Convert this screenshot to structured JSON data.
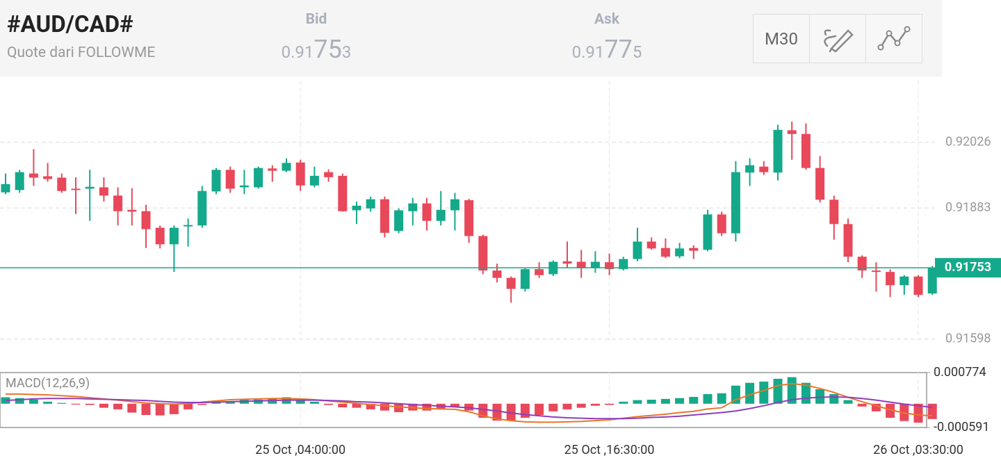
{
  "header": {
    "symbol": "#AUD/CAD#",
    "source": "Quote dari FOLLOWME",
    "bid": {
      "label": "Bid",
      "prefix": "0.91",
      "big": "75",
      "suffix": "3"
    },
    "ask": {
      "label": "Ask",
      "prefix": "0.91",
      "big": "77",
      "suffix": "5"
    },
    "timeframe": "M30"
  },
  "chart_data": [
    {
      "type": "candlestick",
      "categories": [
        null,
        null,
        null,
        null,
        null,
        null,
        null,
        null,
        null,
        null,
        null,
        null,
        null,
        null,
        null,
        null,
        null,
        null,
        null,
        null,
        null,
        "25 Oct ,04:00:00",
        null,
        null,
        null,
        null,
        null,
        null,
        null,
        null,
        null,
        null,
        null,
        null,
        null,
        null,
        null,
        null,
        null,
        null,
        null,
        null,
        null,
        "25 Oct ,16:30:00",
        null,
        null,
        null,
        null,
        null,
        null,
        null,
        null,
        null,
        null,
        null,
        null,
        null,
        null,
        null,
        null,
        null,
        null,
        null,
        null,
        null,
        "26 Oct ,03:30:00",
        null
      ],
      "open": [
        0.91917,
        0.91922,
        0.91958,
        0.91952,
        0.91949,
        0.91925,
        0.91925,
        0.91928,
        0.9191,
        0.91879,
        0.91876,
        0.9184,
        0.91804,
        0.91843,
        0.91845,
        0.91919,
        0.91966,
        0.91928,
        0.91928,
        0.91969,
        0.91964,
        0.91982,
        0.91932,
        0.91961,
        0.91953,
        0.91878,
        0.91882,
        0.91902,
        0.91833,
        0.91876,
        0.91893,
        0.91855,
        0.91878,
        0.919,
        0.91822,
        0.91747,
        0.91731,
        0.91707,
        0.9175,
        0.91739,
        0.91767,
        0.91766,
        0.91754,
        0.91765,
        0.9175,
        0.91772,
        0.9181,
        0.91796,
        0.91778,
        0.91796,
        0.91792,
        0.91869,
        0.91828,
        0.9196,
        0.91973,
        0.9196,
        0.92052,
        0.92044,
        0.9197,
        0.91901,
        0.91848,
        0.91777,
        0.91747,
        0.91744,
        0.91715,
        0.91734,
        0.91697
      ],
      "high": [
        0.91958,
        0.91966,
        0.92011,
        0.91981,
        0.91958,
        0.9195,
        0.91966,
        0.9195,
        0.91928,
        0.91926,
        0.9189,
        0.91845,
        0.91845,
        0.9186,
        0.91931,
        0.9197,
        0.91973,
        0.91966,
        0.91973,
        0.91976,
        0.91991,
        0.91988,
        0.91973,
        0.91967,
        0.91958,
        0.91897,
        0.91908,
        0.91908,
        0.91882,
        0.91905,
        0.91905,
        0.9192,
        0.91916,
        0.91903,
        0.91825,
        0.91762,
        0.91734,
        0.91754,
        0.91765,
        0.91769,
        0.9181,
        0.91792,
        0.91789,
        0.91784,
        0.91777,
        0.9184,
        0.91819,
        0.91817,
        0.91807,
        0.91802,
        0.91879,
        0.91875,
        0.91985,
        0.91991,
        0.91985,
        0.92064,
        0.92071,
        0.92067,
        0.91996,
        0.9191,
        0.9186,
        0.9178,
        0.91765,
        0.9175,
        0.91737,
        0.91737,
        0.91757
      ],
      "low": [
        0.91913,
        0.91916,
        0.91931,
        0.9194,
        0.91916,
        0.9187,
        0.91855,
        0.91897,
        0.91845,
        0.91845,
        0.91796,
        0.91795,
        0.91744,
        0.91799,
        0.9184,
        0.91913,
        0.91916,
        0.91913,
        0.91925,
        0.9194,
        0.91961,
        0.9192,
        0.91928,
        0.9194,
        0.91875,
        0.91848,
        0.91875,
        0.91819,
        0.91828,
        0.91845,
        0.91834,
        0.91845,
        0.91834,
        0.91807,
        0.91739,
        0.91721,
        0.91677,
        0.91701,
        0.91731,
        0.91735,
        0.91754,
        0.91731,
        0.91742,
        0.91737,
        0.91747,
        0.91767,
        0.91792,
        0.91774,
        0.91774,
        0.91772,
        0.91789,
        0.91822,
        0.9181,
        0.91931,
        0.91955,
        0.91943,
        0.91988,
        0.91966,
        0.91895,
        0.91814,
        0.91765,
        0.91731,
        0.91701,
        0.91689,
        0.91694,
        0.91689,
        0.91694
      ],
      "close": [
        0.91935,
        0.91961,
        0.91949,
        0.91946,
        0.9192,
        0.91922,
        0.91929,
        0.9191,
        0.91876,
        0.91875,
        0.91837,
        0.91804,
        0.9184,
        0.91846,
        0.9192,
        0.91966,
        0.91925,
        0.91932,
        0.9197,
        0.91964,
        0.91981,
        0.91932,
        0.91953,
        0.9195,
        0.91876,
        0.91888,
        0.91902,
        0.91829,
        0.91878,
        0.91893,
        0.91855,
        0.91879,
        0.91902,
        0.91822,
        0.91747,
        0.91731,
        0.91707,
        0.9175,
        0.91737,
        0.91766,
        0.91762,
        0.91752,
        0.91766,
        0.9175,
        0.91772,
        0.9181,
        0.91795,
        0.91777,
        0.91795,
        0.9179,
        0.91869,
        0.91828,
        0.91961,
        0.91976,
        0.91961,
        0.92053,
        0.92044,
        0.9197,
        0.91901,
        0.91848,
        0.91777,
        0.91747,
        0.91744,
        0.91715,
        0.91734,
        0.91694,
        0.91754
      ],
      "up_color": "#14a98a",
      "down_color": "#e8485a",
      "last_price": 0.91753,
      "ylim": [
        0.9159,
        0.9216
      ],
      "yticks": [
        0.91598,
        0.91883,
        0.92026
      ],
      "grid": true
    },
    {
      "type": "macd",
      "label": "MACD(12,26,9)",
      "histogram": {
        "up_color": "#14a98a",
        "down_color": "#e8485a",
        "values": [
          0.00016,
          0.00014,
          0.0001,
          5e-05,
          2e-05,
          -2e-05,
          -3e-05,
          -0.0001,
          -0.00014,
          -0.00022,
          -0.00028,
          -0.00029,
          -0.00026,
          -0.00014,
          -3e-05,
          3e-05,
          5e-05,
          0.0001,
          0.0001,
          0.00014,
          0.00016,
          9e-05,
          5e-05,
          -3e-05,
          -9e-05,
          -0.0001,
          -0.00014,
          -0.00017,
          -0.00021,
          -0.00017,
          -0.00017,
          -0.00012,
          -9e-05,
          -0.00017,
          -0.00035,
          -0.00042,
          -0.00042,
          -0.00035,
          -0.00028,
          -0.00019,
          -0.00014,
          -0.0001,
          -5e-05,
          -3e-05,
          5e-05,
          9e-05,
          0.0001,
          0.00012,
          0.00014,
          0.00017,
          0.00024,
          0.00026,
          0.00045,
          0.00052,
          0.00055,
          0.00062,
          0.00066,
          0.00052,
          0.00036,
          0.00024,
          9e-05,
          -7e-05,
          -0.00019,
          -0.00035,
          -0.00043,
          -0.00047,
          -0.00038
        ]
      },
      "series": [
        {
          "color": "#e8762b",
          "values": [
            0.00024,
            0.00024,
            0.00023,
            0.00022,
            0.0002,
            0.00018,
            0.00015,
            0.00012,
            9e-05,
            5e-05,
            2e-05,
            0,
            -1e-05,
            0,
            4e-05,
            7e-05,
            0.0001,
            0.00011,
            0.00012,
            0.00013,
            0.00013,
            0.00012,
            0.0001,
            7e-05,
            4e-05,
            1e-05,
            -2e-05,
            -5e-05,
            -8e-05,
            -0.0001,
            -0.00012,
            -0.00013,
            -0.00014,
            -0.0002,
            -0.0003,
            -0.00038,
            -0.00042,
            -0.00045,
            -0.00046,
            -0.00046,
            -0.00045,
            -0.00044,
            -0.00042,
            -0.0004,
            -0.00036,
            -0.00032,
            -0.00029,
            -0.00026,
            -0.00022,
            -0.00019,
            -0.00013,
            -0.0001,
            0.0001,
            0.00022,
            0.00033,
            0.00045,
            0.0005,
            0.00046,
            0.00038,
            0.00028,
            0.00016,
            5e-05,
            -5e-05,
            -0.00015,
            -0.00023,
            -0.00028,
            -0.0003
          ]
        },
        {
          "color": "#8e3dbb",
          "values": [
            8e-05,
            0.0001,
            0.00012,
            0.00013,
            0.00013,
            0.00013,
            0.00012,
            0.00011,
            0.0001,
            9e-05,
            8e-05,
            6e-05,
            4e-05,
            3e-05,
            3e-05,
            4e-05,
            5e-05,
            6e-05,
            7e-05,
            8e-05,
            9e-05,
            9e-05,
            9e-05,
            8e-05,
            7e-05,
            5e-05,
            4e-05,
            2e-05,
            0,
            -2e-05,
            -4e-05,
            -6e-05,
            -8e-05,
            -0.0001,
            -0.00014,
            -0.00018,
            -0.00023,
            -0.00027,
            -0.0003,
            -0.00033,
            -0.00035,
            -0.00036,
            -0.00037,
            -0.00037,
            -0.00037,
            -0.00036,
            -0.00034,
            -0.00033,
            -0.00031,
            -0.00028,
            -0.00025,
            -0.00022,
            -0.00018,
            -0.00012,
            -5e-05,
            3e-05,
            0.0001,
            0.00014,
            0.00016,
            0.00017,
            0.00016,
            0.00013,
            9e-05,
            4e-05,
            -1e-05,
            -5e-05,
            -9e-05
          ]
        }
      ],
      "ylim": [
        -0.000591,
        0.000774
      ],
      "yticks": [
        0.000774,
        -0.000591
      ]
    }
  ]
}
